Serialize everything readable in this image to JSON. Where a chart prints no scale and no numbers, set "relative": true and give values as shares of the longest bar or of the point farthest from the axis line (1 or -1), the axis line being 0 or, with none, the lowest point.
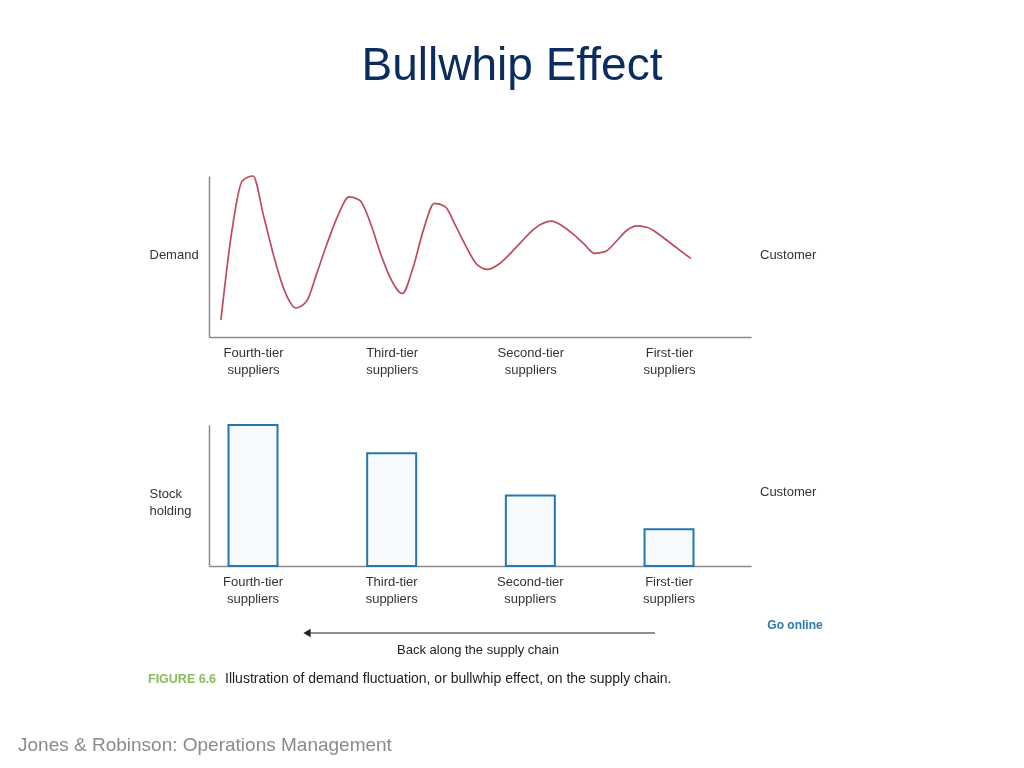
{
  "chart_data": [
    {
      "type": "line",
      "title": "Bullwhip Effect",
      "ylabel": "Demand",
      "relative": true,
      "categories": [
        null,
        null,
        null,
        "Fourth-tier suppliers",
        null,
        null,
        null,
        null,
        null,
        null,
        null,
        null,
        null,
        null,
        null,
        null,
        "Third-tier suppliers",
        null,
        null,
        null,
        null,
        null,
        null,
        null,
        null,
        null,
        null,
        null,
        null,
        "Second-tier suppliers",
        null,
        null,
        null,
        null,
        null,
        null,
        null,
        null,
        null,
        null,
        null,
        null,
        "First-tier suppliers",
        null,
        null
      ],
      "series": [
        {
          "color": "#bf4b5e",
          "values": [
            0.11,
            0.65,
            0.97,
            1.0,
            0.75,
            0.49,
            0.28,
            0.18,
            0.22,
            0.4,
            0.59,
            0.76,
            0.87,
            0.85,
            0.71,
            0.51,
            0.35,
            0.27,
            0.43,
            0.67,
            0.83,
            0.81,
            0.69,
            0.56,
            0.45,
            0.42,
            0.45,
            0.51,
            0.58,
            0.65,
            0.7,
            0.72,
            0.69,
            0.64,
            0.58,
            0.52,
            0.53,
            0.59,
            0.66,
            0.69,
            0.68,
            0.64,
            0.59,
            0.54,
            0.49
          ]
        }
      ],
      "annotations": [
        "Customer"
      ]
    },
    {
      "type": "bar",
      "ylabel": "Stock holding",
      "relative": true,
      "categories": [
        "Fourth-tier suppliers",
        "Third-tier suppliers",
        "Second-tier suppliers",
        "First-tier suppliers"
      ],
      "values": [
        1.0,
        0.8,
        0.5,
        0.26
      ],
      "color": "#2577ae",
      "annotations": [
        "Customer",
        "Back along the supply chain",
        "FIGURE 6.6",
        "Illustration of demand fluctuation, or bullwhip effect, on the supply chain.",
        "Go online",
        "Jones & Robinson: Operations Management"
      ]
    }
  ]
}
